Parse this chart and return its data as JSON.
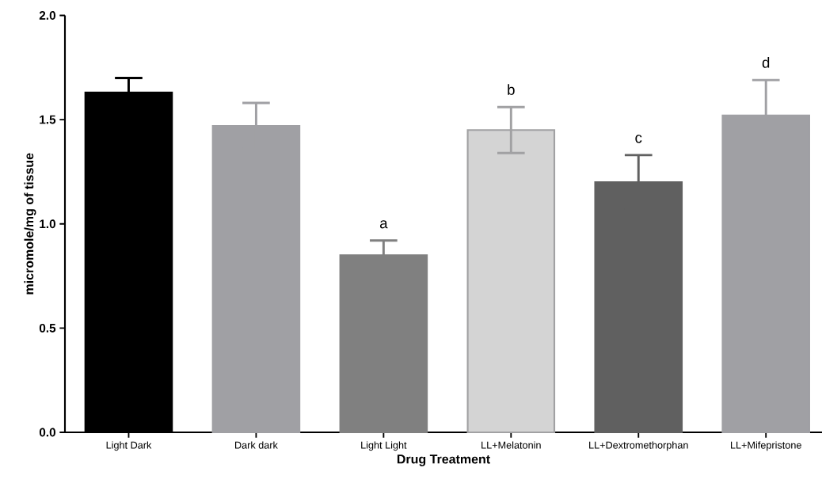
{
  "chart_data": {
    "type": "bar",
    "xlabel": "Drug Treatment",
    "ylabel": "micromole/mg of tissue",
    "categories": [
      "Light Dark",
      "Dark dark",
      "Light Light",
      "LL+Melatonin",
      "LL+Dextromethorphan",
      "LL+Mifepristone"
    ],
    "values": [
      1.63,
      1.47,
      0.85,
      1.45,
      1.2,
      1.52
    ],
    "errors": [
      0.07,
      0.11,
      0.07,
      0.11,
      0.13,
      0.17
    ],
    "colors": [
      "#000000",
      "#a0a0a4",
      "#808080",
      "#d4d4d4",
      "#606060",
      "#a0a0a4"
    ],
    "ylim": [
      0,
      2
    ],
    "yticks": [
      {
        "value": 0,
        "label": "0.0"
      },
      {
        "value": 0.5,
        "label": "0.5"
      },
      {
        "value": 1,
        "label": "1.0"
      },
      {
        "value": 1.5,
        "label": "1.5"
      },
      {
        "value": 2,
        "label": "2.0"
      }
    ],
    "grid": false,
    "annotations": [
      "a",
      "b",
      "c",
      "d"
    ]
  }
}
